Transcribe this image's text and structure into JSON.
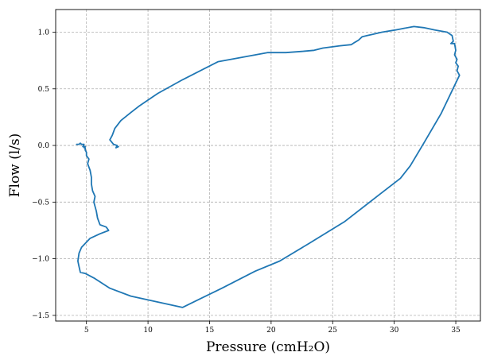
{
  "chart_data": {
    "type": "line",
    "title": "",
    "xlabel": "Pressure (cmH₂O)",
    "ylabel": "Flow (l/s)",
    "xlim": [
      2.5,
      37
    ],
    "ylim": [
      -1.55,
      1.2
    ],
    "xticks": [
      5,
      10,
      15,
      20,
      25,
      30,
      35
    ],
    "yticks": [
      -1.5,
      -1.0,
      -0.5,
      0.0,
      0.5,
      1.0
    ],
    "xtick_labels": [
      "5",
      "10",
      "15",
      "20",
      "25",
      "30",
      "35"
    ],
    "ytick_labels": [
      "−1.5",
      "−1.0",
      "−0.5",
      "0.0",
      "0.5",
      "1.0"
    ],
    "grid": true,
    "colors": {
      "series": "#1f77b4"
    },
    "series": [
      {
        "x": [
          7.6,
          7.4,
          7.5,
          7.2,
          6.9,
          7.1,
          7.3,
          7.8,
          8.6,
          9.3,
          10.8,
          12.8,
          15.7,
          19.7,
          21.2,
          22.5,
          23.5,
          24.2,
          25.6,
          26.5,
          26.8,
          27.1,
          27.4,
          27.8,
          28.2,
          29.0,
          30.1,
          30.6,
          31.6,
          32.4,
          33.3,
          34.3,
          34.7,
          34.8,
          34.6,
          34.9,
          35.0,
          34.9,
          35.1,
          35.0,
          35.2,
          35.1,
          35.3,
          33.8,
          32.4,
          31.3,
          30.5,
          28.6,
          26.0,
          23.0,
          20.7,
          18.7,
          16.0,
          12.8,
          8.6,
          6.9,
          5.6,
          4.9,
          4.5,
          4.4,
          4.3,
          4.4,
          4.6,
          5.3,
          6.1,
          6.8,
          6.6,
          6.1,
          5.9,
          5.8,
          5.6,
          5.7,
          5.5,
          5.4,
          5.4,
          5.3,
          5.1,
          5.2,
          5.0,
          5.0,
          4.9,
          4.9,
          4.8,
          4.9,
          4.7,
          4.8,
          4.6,
          4.5,
          4.4,
          4.2
        ],
        "y": [
          -0.01,
          -0.02,
          0.0,
          0.01,
          0.05,
          0.09,
          0.15,
          0.22,
          0.29,
          0.35,
          0.46,
          0.58,
          0.74,
          0.82,
          0.82,
          0.83,
          0.84,
          0.86,
          0.88,
          0.89,
          0.91,
          0.93,
          0.96,
          0.97,
          0.98,
          1.0,
          1.02,
          1.03,
          1.05,
          1.04,
          1.02,
          1.0,
          0.97,
          0.92,
          0.9,
          0.9,
          0.84,
          0.8,
          0.76,
          0.73,
          0.7,
          0.66,
          0.62,
          0.28,
          0.02,
          -0.18,
          -0.29,
          -0.45,
          -0.67,
          -0.87,
          -1.02,
          -1.11,
          -1.26,
          -1.43,
          -1.33,
          -1.26,
          -1.17,
          -1.13,
          -1.12,
          -1.07,
          -1.02,
          -0.95,
          -0.9,
          -0.82,
          -0.78,
          -0.75,
          -0.72,
          -0.7,
          -0.64,
          -0.58,
          -0.5,
          -0.45,
          -0.4,
          -0.34,
          -0.28,
          -0.22,
          -0.16,
          -0.12,
          -0.09,
          -0.06,
          -0.04,
          -0.02,
          -0.02,
          -0.01,
          -0.01,
          0.01,
          0.01,
          0.02,
          0.01,
          0.01
        ]
      }
    ]
  }
}
